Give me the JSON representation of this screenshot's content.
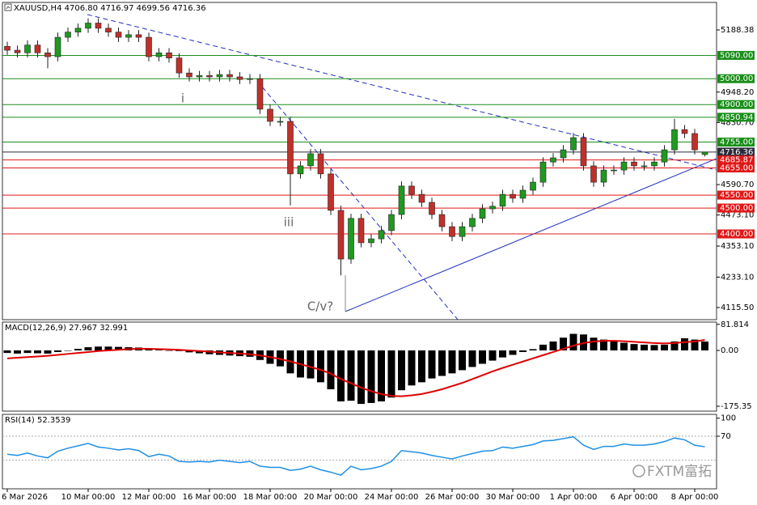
{
  "chart_data": [
    {
      "type": "candlestick",
      "title": "XAUUSD,H4 4706.80 4716.97 4699.56 4716.36",
      "categories": [
        "6 Mar 2026",
        null,
        null,
        null,
        null,
        null,
        null,
        null,
        "10 Mar 00:00",
        null,
        null,
        null,
        null,
        null,
        "12 Mar 00:00",
        null,
        null,
        null,
        null,
        null,
        "16 Mar 00:00",
        null,
        null,
        null,
        null,
        null,
        "18 Mar 00:00",
        null,
        null,
        null,
        null,
        null,
        "20 Mar 00:00",
        null,
        null,
        null,
        null,
        null,
        "24 Mar 00:00",
        null,
        null,
        null,
        null,
        null,
        "26 Mar 00:00",
        null,
        null,
        null,
        null,
        null,
        "30 Mar 00:00",
        null,
        null,
        null,
        null,
        null,
        "1 Apr 00:00",
        null,
        null,
        null,
        null,
        null,
        "6 Apr 00:00",
        null,
        null,
        null,
        null,
        null,
        "8 Apr 00:00",
        null
      ],
      "open": [
        5125,
        5110,
        5100,
        5130,
        5100,
        5085,
        5160,
        5180,
        5195,
        5215,
        5195,
        5180,
        5160,
        5170,
        5160,
        5085,
        5100,
        5080,
        5022,
        5007,
        5012,
        5007,
        5016,
        5007,
        4997,
        5000,
        4882,
        4835,
        4835,
        4632,
        4663,
        4710,
        4632,
        4491,
        4303,
        4460,
        4366,
        4381,
        4413,
        4475,
        4585,
        4553,
        4522,
        4475,
        4428,
        4390,
        4428,
        4460,
        4497,
        4507,
        4553,
        4538,
        4569,
        4600,
        4678,
        4694,
        4725,
        4772,
        4663,
        4600,
        4647,
        4647,
        4678,
        4663,
        4663,
        4678,
        4725,
        4803,
        4788,
        4706.8
      ],
      "high": [
        5143,
        5128,
        5148,
        5148,
        5118,
        5178,
        5198,
        5213,
        5233,
        5233,
        5213,
        5198,
        5188,
        5188,
        5178,
        5118,
        5118,
        5098,
        5040,
        5030,
        5030,
        5034,
        5034,
        5025,
        5018,
        5018,
        4900,
        4853,
        4853,
        4681,
        4728,
        4728,
        4650,
        4509,
        4478,
        4478,
        4399,
        4431,
        4493,
        4603,
        4603,
        4571,
        4540,
        4493,
        4446,
        4446,
        4478,
        4515,
        4525,
        4571,
        4571,
        4587,
        4618,
        4696,
        4712,
        4743,
        4790,
        4790,
        4681,
        4665,
        4665,
        4696,
        4696,
        4681,
        4696,
        4743,
        4845,
        4821,
        4806,
        4716.97
      ],
      "low": [
        5092,
        5082,
        5082,
        5082,
        5040,
        5067,
        5142,
        5162,
        5177,
        5177,
        5162,
        5142,
        5142,
        5142,
        5067,
        5067,
        5062,
        5004,
        4989,
        4989,
        4989,
        4989,
        4989,
        4979,
        4979,
        4864,
        4817,
        4817,
        4510,
        4614,
        4645,
        4614,
        4473,
        4240,
        4285,
        4348,
        4348,
        4363,
        4395,
        4457,
        4535,
        4504,
        4457,
        4410,
        4372,
        4372,
        4410,
        4442,
        4479,
        4489,
        4520,
        4520,
        4551,
        4582,
        4660,
        4676,
        4707,
        4645,
        4582,
        4582,
        4629,
        4629,
        4645,
        4645,
        4645,
        4660,
        4707,
        4770,
        4707,
        4699.56
      ],
      "close": [
        5110,
        5100,
        5130,
        5100,
        5085,
        5160,
        5180,
        5195,
        5215,
        5195,
        5180,
        5160,
        5170,
        5160,
        5085,
        5100,
        5080,
        5022,
        5007,
        5012,
        5007,
        5016,
        5007,
        4997,
        5000,
        4882,
        4835,
        4835,
        4632,
        4663,
        4710,
        4632,
        4491,
        4303,
        4460,
        4366,
        4381,
        4413,
        4475,
        4585,
        4553,
        4522,
        4475,
        4428,
        4390,
        4428,
        4460,
        4497,
        4507,
        4553,
        4538,
        4569,
        4600,
        4678,
        4694,
        4725,
        4772,
        4663,
        4600,
        4647,
        4647,
        4678,
        4663,
        4663,
        4678,
        4725,
        4803,
        4788,
        4725,
        4716.36
      ],
      "bull_color": "#1f9a1f",
      "bear_color": "#c0302a",
      "ylim": [
        4068.6,
        5294.7
      ],
      "yticks": [
        5188.38,
        {
          "value": 4948.2,
          "label": "4948.20"
        },
        {
          "value": 4830.7,
          "label": "4830.70"
        },
        {
          "value": 4590.7,
          "label": "4590.70"
        },
        {
          "value": 4473.1,
          "label": "4473.10"
        },
        {
          "value": 4353.1,
          "label": "4353.10"
        },
        {
          "value": 4233.1,
          "label": "4233.10"
        },
        {
          "value": 4115.5,
          "label": "4115.50"
        }
      ],
      "levels": [
        {
          "value": 5090,
          "label": "5090.00",
          "color": "#1a8f1a"
        },
        {
          "value": 5000,
          "label": "5000.00",
          "color": "#1a8f1a"
        },
        {
          "value": 4900,
          "label": "4900.00",
          "color": "#1a8f1a"
        },
        {
          "value": 4850.94,
          "label": "4850.94",
          "color": "#1a8f1a"
        },
        {
          "value": 4755,
          "label": "4755.00",
          "color": "#1a8f1a"
        },
        {
          "value": 4716.36,
          "label": "4716.36",
          "color": "#2b2b3a"
        },
        {
          "value": 4685.87,
          "label": "4685.87",
          "color": "#e01818"
        },
        {
          "value": 4655,
          "label": "4655.00",
          "color": "#e01818"
        },
        {
          "value": 4550,
          "label": "4550.00",
          "color": "#e01818"
        },
        {
          "value": 4500,
          "label": "4500.00",
          "color": "#e01818"
        },
        {
          "value": 4400,
          "label": "4400.00",
          "color": "#e01818"
        }
      ],
      "annotations": [
        "i",
        "iii",
        "C/v?"
      ],
      "watermark": "FXTM富拓"
    },
    {
      "type": "macd",
      "title": "MACD(12,26,9) 27.967 32.991",
      "histogram": {
        "color": "#000000",
        "values": [
          -8,
          -10,
          -8,
          -9,
          -10,
          -5,
          0,
          5,
          10,
          12,
          12,
          11,
          10,
          9,
          5,
          2,
          0,
          -2,
          -6,
          -9,
          -12,
          -14,
          -16,
          -18,
          -20,
          -30,
          -42,
          -50,
          -72,
          -85,
          -88,
          -100,
          -122,
          -160,
          -158,
          -168,
          -165,
          -160,
          -148,
          -125,
          -110,
          -100,
          -88,
          -80,
          -72,
          -62,
          -52,
          -42,
          -32,
          -22,
          -14,
          -5,
          4,
          18,
          28,
          40,
          52,
          50,
          40,
          34,
          28,
          24,
          20,
          18,
          17,
          18,
          28,
          38,
          34,
          27.967
        ]
      },
      "signal": {
        "color": "#e00000",
        "values": [
          -25,
          -23,
          -21,
          -19,
          -17,
          -14,
          -11,
          -8,
          -5,
          -2,
          0,
          2,
          4,
          5,
          5,
          4,
          3,
          2,
          0,
          -2,
          -4,
          -6,
          -8,
          -10,
          -12,
          -16,
          -21,
          -27,
          -35,
          -43,
          -52,
          -61,
          -73,
          -90,
          -103,
          -117,
          -128,
          -137,
          -143,
          -144,
          -141,
          -137,
          -130,
          -122,
          -112,
          -102,
          -90,
          -78,
          -66,
          -55,
          -45,
          -35,
          -25,
          -15,
          -5,
          5,
          15,
          23,
          28,
          30,
          30,
          29,
          27,
          25,
          23,
          22,
          23,
          26,
          28,
          32.991
        ]
      },
      "ylim": [
        -190.6,
        88.9
      ],
      "yticks": [
        81.814,
        {
          "value": 0,
          "label": "0.00"
        },
        -175.35
      ]
    },
    {
      "type": "line",
      "title": "RSI(14) 52.3539",
      "values": [
        40,
        38,
        42,
        37,
        34,
        45,
        50,
        54,
        58,
        52,
        50,
        47,
        49,
        46,
        36,
        40,
        37,
        28,
        27,
        28,
        27,
        30,
        28,
        26,
        28,
        20,
        18,
        18,
        13,
        15,
        20,
        14,
        10,
        5,
        20,
        14,
        16,
        20,
        28,
        46,
        44,
        42,
        38,
        35,
        32,
        37,
        41,
        45,
        46,
        52,
        50,
        53,
        56,
        62,
        63,
        66,
        69,
        55,
        48,
        53,
        53,
        57,
        55,
        55,
        57,
        61,
        67,
        64,
        55,
        52.3539
      ],
      "color": "#1e8fe6",
      "ylim": [
        -17.7,
        106.4
      ],
      "yticks": [
        100,
        70
      ],
      "levels": [
        70,
        30
      ]
    }
  ]
}
